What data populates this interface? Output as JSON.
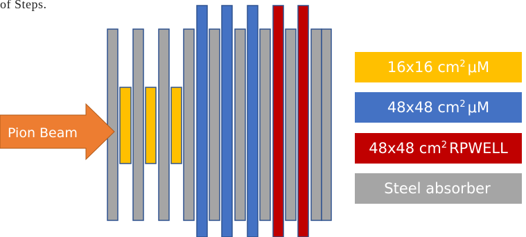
{
  "caption_fragment": "of Steps.",
  "arrow": {
    "label": "Pion Beam",
    "color": "#ed7d31"
  },
  "colors": {
    "steel": "#a5a5a5",
    "small_micromegas": "#ffc000",
    "large_micromegas": "#4472c4",
    "rpwell": "#c00000",
    "outline": "#2f528f"
  },
  "legend": [
    {
      "prefix": "16x16 cm",
      "sup": "2",
      "suffix": "μM",
      "color": "#ffc000"
    },
    {
      "prefix": "48x48 cm",
      "sup": "2",
      "suffix": "μM",
      "color": "#4472c4"
    },
    {
      "prefix": "48x48 cm",
      "sup": "2",
      "suffix": "RPWELL",
      "color": "#c00000"
    },
    {
      "prefix": "Steel absorber",
      "sup": "",
      "suffix": "",
      "color": "#a5a5a5"
    }
  ]
}
